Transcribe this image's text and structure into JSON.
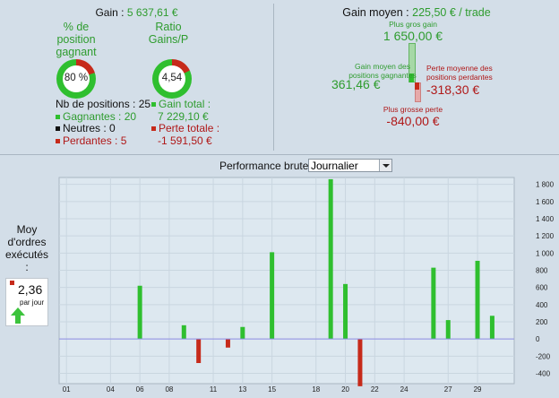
{
  "summary": {
    "gain_label": "Gain :",
    "gain_value": "5 637,61 €",
    "pct_label_1": "% de",
    "pct_label_2": "position",
    "pct_label_3": "gagnant",
    "pct_value": "80 %",
    "pct_fraction": 0.8,
    "ratio_label_1": "Ratio",
    "ratio_label_2": "Gains/P",
    "ratio_value": "4,54",
    "ratio_fraction": 0.82,
    "nb_positions": "Nb de positions : 25",
    "gagnantes": "Gagnantes : 20",
    "neutres": "Neutres : 0",
    "perdantes": "Perdantes : 5",
    "gain_total_label": "Gain total :",
    "gain_total_value": "7 229,10 €",
    "perte_totale_label": "Perte totale :",
    "perte_totale_value": "-1 591,50 €"
  },
  "averages": {
    "gain_moyen_label": "Gain moyen :",
    "gain_moyen_value": "225,50 € / trade",
    "plus_gros_gain_label": "Plus gros gain",
    "plus_gros_gain_value": "1 650,00 €",
    "gain_moyen_positions_label_1": "Gain moyen des",
    "gain_moyen_positions_label_2": "positions gagnantes",
    "gain_moyen_positions_value": "361,46 €",
    "perte_moyenne_label_1": "Perte moyenne des",
    "perte_moyenne_label_2": "positions perdantes",
    "perte_moyenne_value": "-318,30 €",
    "plus_grosse_perte_label": "Plus grosse perte",
    "plus_grosse_perte_value": "-840,00 €"
  },
  "orders": {
    "label_1": "Moy",
    "label_2": "d'ordres",
    "label_3": "exécutés",
    "label_4": ":",
    "value": "2,36",
    "unit": "par jour"
  },
  "chart_header": {
    "title": "Performance brute",
    "period_selected": "Journalier"
  },
  "colors": {
    "gain": "#2fbf2f",
    "loss": "#c62a1a",
    "zero_line": "#8e8ee6",
    "text_green": "#2e9c2e",
    "text_red": "#b01818"
  },
  "chart_data": {
    "type": "bar",
    "title": "Performance brute",
    "x_tick_labels": [
      "01",
      "04",
      "06",
      "08",
      "11",
      "13",
      "15",
      "18",
      "20",
      "22",
      "24",
      "27",
      "29"
    ],
    "y_ticks": [
      -400,
      -200,
      0,
      200,
      400,
      600,
      800,
      1000,
      1200,
      1400,
      1600,
      1800
    ],
    "y_tick_labels": [
      "-400",
      "-200",
      "0",
      "200",
      "400",
      "600",
      "800",
      "1 000",
      "1 200",
      "1 400",
      "1 600",
      "1 800"
    ],
    "ylim": [
      -520,
      1880
    ],
    "xlim": [
      0.5,
      31.5
    ],
    "grid": true,
    "x": [
      6,
      9,
      10,
      12,
      13,
      15,
      19,
      20,
      21,
      26,
      27,
      29,
      30
    ],
    "values": [
      620,
      160,
      -280,
      -100,
      140,
      1010,
      1860,
      640,
      -550,
      830,
      220,
      910,
      270
    ]
  }
}
